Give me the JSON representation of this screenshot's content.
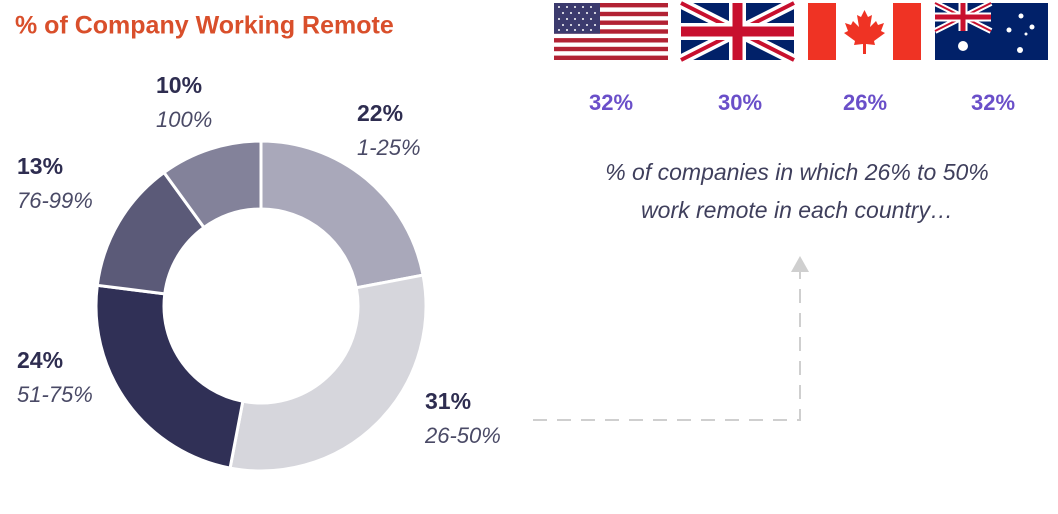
{
  "chart_data": {
    "type": "pie",
    "title": "% of Company Working Remote",
    "categories": [
      "1-25%",
      "26-50%",
      "51-75%",
      "76-99%",
      "100%"
    ],
    "values": [
      22,
      31,
      24,
      13,
      10
    ],
    "value_labels": [
      "22%",
      "31%",
      "24%",
      "13%",
      "10%"
    ],
    "colors": [
      "#a9a8ba",
      "#d6d6dc",
      "#303056",
      "#5b5a78",
      "#83829a"
    ]
  },
  "country_stats": {
    "values": [
      32,
      30,
      26,
      32
    ],
    "value_labels": [
      "32%",
      "30%",
      "26%",
      "32%"
    ],
    "note_lines": [
      "% of companies in which 26% to 50%",
      "work remote in each country…"
    ]
  }
}
